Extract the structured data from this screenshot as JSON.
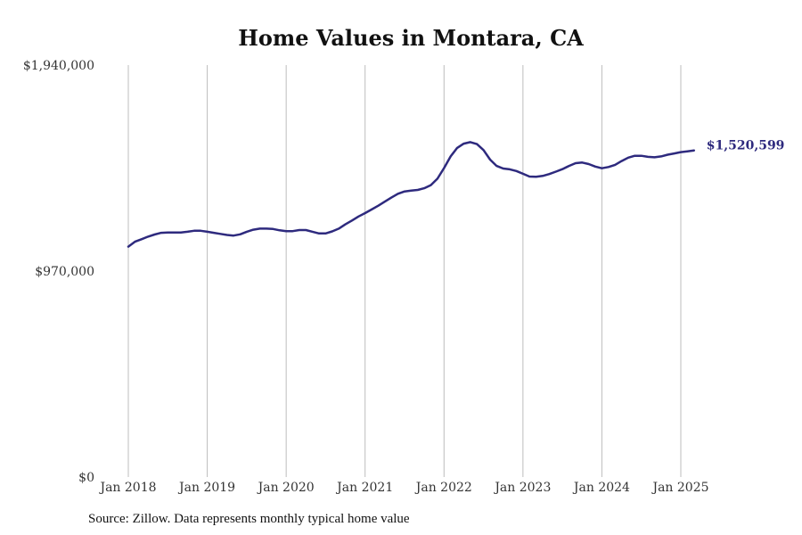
{
  "chart_data": {
    "type": "line",
    "title": "Home Values in Montara, CA",
    "xlabel": "",
    "ylabel": "",
    "ylim": [
      0,
      1940000
    ],
    "xlim": [
      "2018-01",
      "2025-05"
    ],
    "y_ticks": [
      {
        "value": 0,
        "label": "$0"
      },
      {
        "value": 970000,
        "label": "$970,000"
      },
      {
        "value": 1940000,
        "label": "$1,940,000"
      }
    ],
    "x_ticks": [
      {
        "value": "2018-01",
        "label": "Jan 2018"
      },
      {
        "value": "2019-01",
        "label": "Jan 2019"
      },
      {
        "value": "2020-01",
        "label": "Jan 2020"
      },
      {
        "value": "2021-01",
        "label": "Jan 2021"
      },
      {
        "value": "2022-01",
        "label": "Jan 2022"
      },
      {
        "value": "2023-01",
        "label": "Jan 2023"
      },
      {
        "value": "2024-01",
        "label": "Jan 2024"
      },
      {
        "value": "2025-01",
        "label": "Jan 2025"
      }
    ],
    "grid": {
      "x": true,
      "y": false
    },
    "line_color": "#2e2a7e",
    "end_label": "$1,520,599",
    "series": [
      {
        "x": [
          "2018-01",
          "2018-02",
          "2018-03",
          "2018-04",
          "2018-05",
          "2018-06",
          "2018-07",
          "2018-08",
          "2018-09",
          "2018-10",
          "2018-11",
          "2018-12",
          "2019-01",
          "2019-02",
          "2019-03",
          "2019-04",
          "2019-05",
          "2019-06",
          "2019-07",
          "2019-08",
          "2019-09",
          "2019-10",
          "2019-11",
          "2019-12",
          "2020-01",
          "2020-02",
          "2020-03",
          "2020-04",
          "2020-05",
          "2020-06",
          "2020-07",
          "2020-08",
          "2020-09",
          "2020-10",
          "2020-11",
          "2020-12",
          "2021-01",
          "2021-02",
          "2021-03",
          "2021-04",
          "2021-05",
          "2021-06",
          "2021-07",
          "2021-08",
          "2021-09",
          "2021-10",
          "2021-11",
          "2021-12",
          "2022-01",
          "2022-02",
          "2022-03",
          "2022-04",
          "2022-05",
          "2022-06",
          "2022-07",
          "2022-08",
          "2022-09",
          "2022-10",
          "2022-11",
          "2022-12",
          "2023-01",
          "2023-02",
          "2023-03",
          "2023-04",
          "2023-05",
          "2023-06",
          "2023-07",
          "2023-08",
          "2023-09",
          "2023-10",
          "2023-11",
          "2023-12",
          "2024-01",
          "2024-02",
          "2024-03",
          "2024-04",
          "2024-05",
          "2024-06",
          "2024-07",
          "2024-08",
          "2024-09",
          "2024-10",
          "2024-11",
          "2024-12",
          "2025-01",
          "2025-02",
          "2025-03"
        ],
        "values": [
          1085000,
          1108000,
          1120000,
          1132000,
          1142000,
          1150000,
          1152000,
          1152000,
          1152000,
          1155000,
          1160000,
          1160000,
          1155000,
          1150000,
          1145000,
          1140000,
          1137000,
          1143000,
          1155000,
          1165000,
          1170000,
          1170000,
          1168000,
          1162000,
          1158000,
          1158000,
          1163000,
          1163000,
          1155000,
          1147000,
          1147000,
          1157000,
          1170000,
          1190000,
          1208000,
          1227000,
          1243000,
          1260000,
          1278000,
          1297000,
          1316000,
          1334000,
          1345000,
          1349000,
          1352000,
          1360000,
          1375000,
          1405000,
          1455000,
          1510000,
          1550000,
          1570000,
          1577000,
          1568000,
          1540000,
          1495000,
          1465000,
          1453000,
          1449000,
          1441000,
          1428000,
          1415000,
          1414000,
          1418000,
          1427000,
          1438000,
          1450000,
          1465000,
          1478000,
          1481000,
          1474000,
          1462000,
          1454000,
          1460000,
          1470000,
          1488000,
          1504000,
          1513000,
          1513000,
          1508000,
          1506000,
          1510000,
          1518000,
          1524000,
          1530000,
          1534000,
          1538000
        ]
      }
    ]
  },
  "source_text": "Source: Zillow. Data represents monthly typical home value"
}
